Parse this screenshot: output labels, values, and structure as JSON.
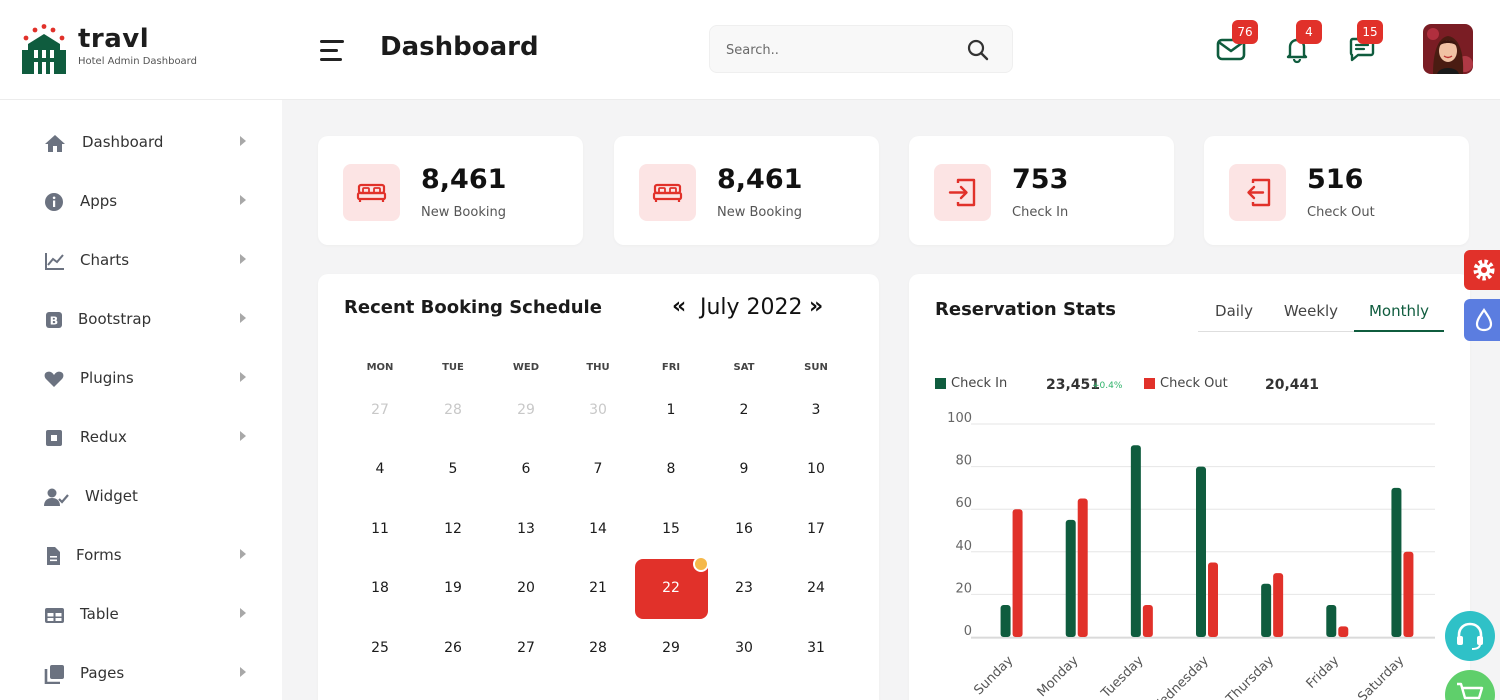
{
  "header": {
    "logo_title": "travl",
    "logo_subtitle": "Hotel Admin Dashboard",
    "page_title": "Dashboard",
    "search_placeholder": "Search..",
    "notifications": [
      {
        "name": "mail",
        "count": "76"
      },
      {
        "name": "bell",
        "count": "4"
      },
      {
        "name": "chat",
        "count": "15"
      }
    ]
  },
  "sidebar": {
    "items": [
      {
        "label": "Dashboard",
        "icon": "home-icon"
      },
      {
        "label": "Apps",
        "icon": "info-icon"
      },
      {
        "label": "Charts",
        "icon": "line-chart-icon"
      },
      {
        "label": "Bootstrap",
        "icon": "bootstrap-icon"
      },
      {
        "label": "Plugins",
        "icon": "heart-icon"
      },
      {
        "label": "Redux",
        "icon": "square-icon"
      },
      {
        "label": "Widget",
        "icon": "user-check-icon"
      },
      {
        "label": "Forms",
        "icon": "file-icon"
      },
      {
        "label": "Table",
        "icon": "table-icon"
      },
      {
        "label": "Pages",
        "icon": "pages-icon"
      }
    ]
  },
  "stats_cards": [
    {
      "value": "8,461",
      "label": "New Booking",
      "icon": "bed-icon"
    },
    {
      "value": "8,461",
      "label": "New Booking",
      "icon": "bed-icon"
    },
    {
      "value": "753",
      "label": "Check In",
      "icon": "check-in-icon"
    },
    {
      "value": "516",
      "label": "Check Out",
      "icon": "check-out-icon"
    }
  ],
  "calendar": {
    "title": "Recent Booking Schedule",
    "prev": "«",
    "next": "»",
    "month": "July 2022",
    "weekdays": [
      "MON",
      "TUE",
      "WED",
      "THU",
      "FRI",
      "SAT",
      "SUN"
    ],
    "weeks": [
      [
        "27",
        "28",
        "29",
        "30",
        "1",
        "2",
        "3"
      ],
      [
        "4",
        "5",
        "6",
        "7",
        "8",
        "9",
        "10"
      ],
      [
        "11",
        "12",
        "13",
        "14",
        "15",
        "16",
        "17"
      ],
      [
        "18",
        "19",
        "20",
        "21",
        "22",
        "23",
        "24"
      ],
      [
        "25",
        "26",
        "27",
        "28",
        "29",
        "30",
        "31"
      ]
    ],
    "selected_day": "22"
  },
  "reservation": {
    "title": "Reservation Stats",
    "tabs": [
      "Daily",
      "Weekly",
      "Monthly"
    ],
    "active_tab": "Monthly",
    "check_in_label": "Check In",
    "check_in_total": "23,451",
    "check_in_change": "+0.4%",
    "check_out_label": "Check Out",
    "check_out_total": "20,441"
  },
  "colors": {
    "brand_green": "#0f5c3e",
    "accent_red": "#e1312a",
    "icon_bg_pink": "#fce4e4",
    "badge_red": "#e1312a"
  },
  "chart_data": {
    "type": "bar",
    "categories": [
      "Sunday",
      "Monday",
      "Tuesday",
      "Wednesday",
      "Thursday",
      "Friday",
      "Saturday"
    ],
    "series": [
      {
        "name": "Check In",
        "color": "#0f5c3e",
        "values": [
          15,
          55,
          90,
          80,
          25,
          15,
          70
        ]
      },
      {
        "name": "Check Out",
        "color": "#e1312a",
        "values": [
          60,
          65,
          15,
          35,
          30,
          5,
          40
        ]
      }
    ],
    "ylim": [
      0,
      100
    ],
    "yticks": [
      0,
      20,
      40,
      60,
      80,
      100
    ],
    "grid": true,
    "legend": "top-left"
  }
}
